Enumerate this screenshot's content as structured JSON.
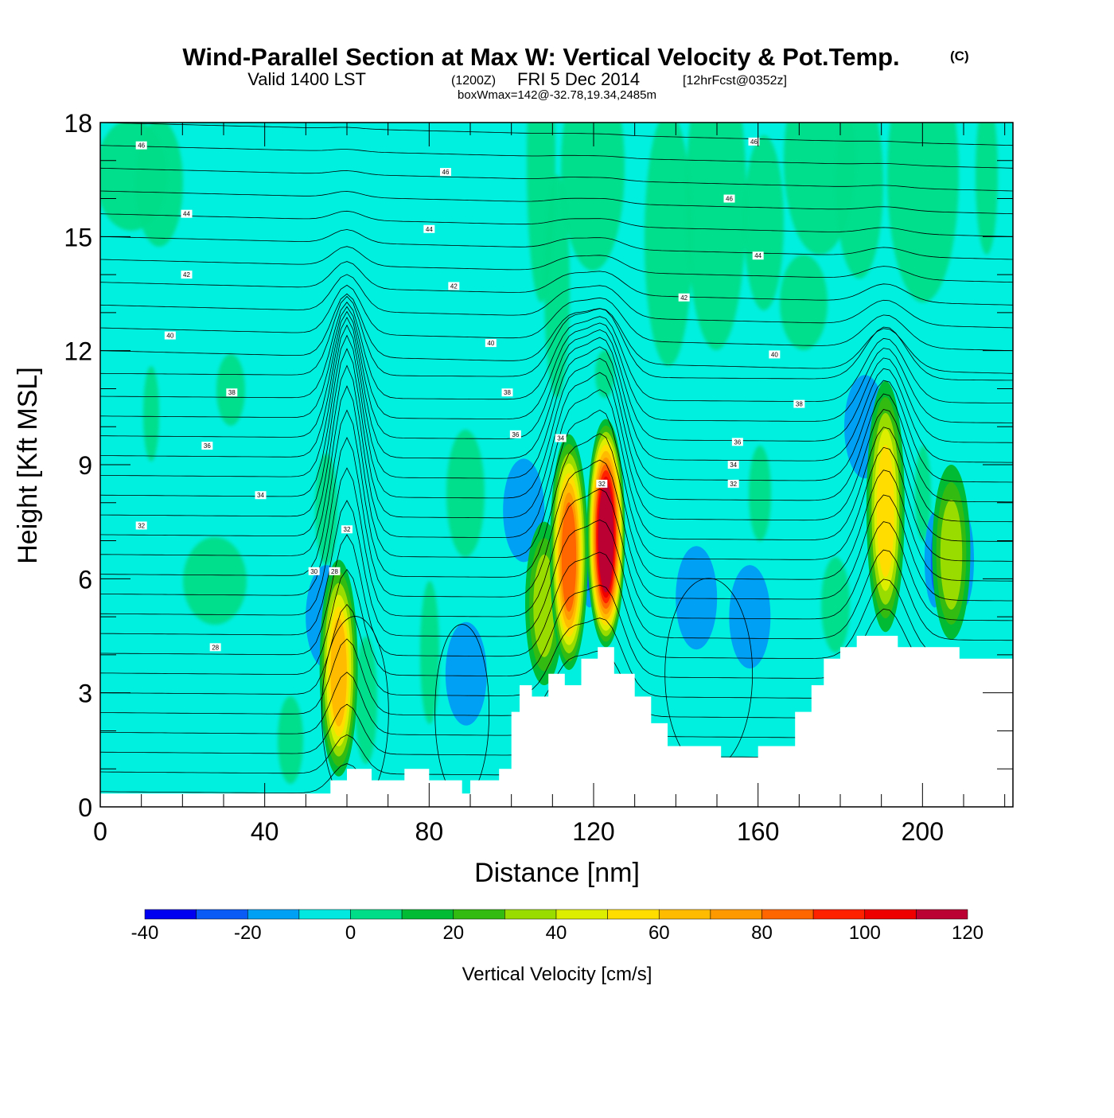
{
  "header": {
    "title": "Wind-Parallel Section at Max W: Vertical Velocity & Pot.Temp.",
    "copyright": "(C)",
    "valid_prefix": "Valid 1400 LST",
    "valid_utc": "(1200Z)",
    "valid_date": "FRI 5 Dec 2014",
    "forecast": "[12hrFcst@0352z]",
    "boxwmax": "boxWmax=142@-32.78,19.34,2485m"
  },
  "chart_data": {
    "type": "heatmap",
    "xlabel": "Distance [nm]",
    "ylabel": "Height [Kft MSL]",
    "xlim": [
      0,
      222
    ],
    "ylim": [
      0,
      18
    ],
    "x_ticks": [
      0,
      40,
      80,
      120,
      160,
      200
    ],
    "y_ticks": [
      0,
      3,
      6,
      9,
      12,
      15,
      18
    ],
    "field": "Vertical Velocity [cm/s]",
    "contour_field": "Potential Temperature",
    "terrain_kft": [
      [
        0,
        0.35
      ],
      [
        56,
        0.35
      ],
      [
        56,
        0.7
      ],
      [
        60,
        0.7
      ],
      [
        60,
        1.0
      ],
      [
        66,
        1.0
      ],
      [
        66,
        0.7
      ],
      [
        74,
        0.7
      ],
      [
        74,
        1.0
      ],
      [
        80,
        1.0
      ],
      [
        80,
        0.7
      ],
      [
        88,
        0.7
      ],
      [
        88,
        0.35
      ],
      [
        90,
        0.35
      ],
      [
        90,
        0.7
      ],
      [
        97,
        0.7
      ],
      [
        97,
        1.0
      ],
      [
        100,
        1.0
      ],
      [
        100,
        2.5
      ],
      [
        102,
        2.5
      ],
      [
        102,
        3.2
      ],
      [
        105,
        3.2
      ],
      [
        105,
        2.9
      ],
      [
        109,
        2.9
      ],
      [
        109,
        3.5
      ],
      [
        113,
        3.5
      ],
      [
        113,
        3.2
      ],
      [
        117,
        3.2
      ],
      [
        117,
        3.9
      ],
      [
        121,
        3.9
      ],
      [
        121,
        4.2
      ],
      [
        125,
        4.2
      ],
      [
        125,
        3.5
      ],
      [
        130,
        3.5
      ],
      [
        130,
        2.9
      ],
      [
        134,
        2.9
      ],
      [
        134,
        2.2
      ],
      [
        138,
        2.2
      ],
      [
        138,
        1.6
      ],
      [
        151,
        1.6
      ],
      [
        151,
        1.3
      ],
      [
        160,
        1.3
      ],
      [
        160,
        1.6
      ],
      [
        169,
        1.6
      ],
      [
        169,
        2.5
      ],
      [
        173,
        2.5
      ],
      [
        173,
        3.2
      ],
      [
        176,
        3.2
      ],
      [
        176,
        3.9
      ],
      [
        180,
        3.9
      ],
      [
        180,
        4.2
      ],
      [
        184,
        4.2
      ],
      [
        184,
        4.5
      ],
      [
        194,
        4.5
      ],
      [
        194,
        4.2
      ],
      [
        209,
        4.2
      ],
      [
        209,
        3.9
      ],
      [
        222,
        3.9
      ]
    ],
    "updrafts": [
      {
        "x": 58,
        "ytop": 6.5,
        "ybot": 0.8,
        "peak_cm_s": 70
      },
      {
        "x": 108,
        "ytop": 7.5,
        "ybot": 3.2,
        "peak_cm_s": 35
      },
      {
        "x": 114,
        "ytop": 9.8,
        "ybot": 3.6,
        "peak_cm_s": 90
      },
      {
        "x": 123,
        "ytop": 10.2,
        "ybot": 4.2,
        "peak_cm_s": 142
      },
      {
        "x": 191,
        "ytop": 11.2,
        "ybot": 4.6,
        "peak_cm_s": 55
      },
      {
        "x": 207,
        "ytop": 9.0,
        "ybot": 4.4,
        "peak_cm_s": 40
      }
    ],
    "downdrafts": [
      {
        "x": 55,
        "y": 5.0,
        "min_cm_s": -15
      },
      {
        "x": 89,
        "y": 3.5,
        "min_cm_s": -15
      },
      {
        "x": 103,
        "y": 7.8,
        "min_cm_s": -15
      },
      {
        "x": 119,
        "y": 6.5,
        "min_cm_s": -25
      },
      {
        "x": 145,
        "y": 5.5,
        "min_cm_s": -15
      },
      {
        "x": 158,
        "y": 5.0,
        "min_cm_s": -15
      },
      {
        "x": 186,
        "y": 10.0,
        "min_cm_s": -20
      },
      {
        "x": 203,
        "y": 6.5,
        "min_cm_s": -30
      },
      {
        "x": 210,
        "y": 6.5,
        "min_cm_s": -30
      }
    ],
    "contour_labels": [
      {
        "x": 10,
        "y": 17.4,
        "text": "46"
      },
      {
        "x": 84,
        "y": 16.7,
        "text": "46"
      },
      {
        "x": 159,
        "y": 17.5,
        "text": "46"
      },
      {
        "x": 153,
        "y": 16.0,
        "text": "46"
      },
      {
        "x": 21,
        "y": 15.6,
        "text": "44"
      },
      {
        "x": 80,
        "y": 15.2,
        "text": "44"
      },
      {
        "x": 160,
        "y": 14.5,
        "text": "44"
      },
      {
        "x": 21,
        "y": 14.0,
        "text": "42"
      },
      {
        "x": 86,
        "y": 13.7,
        "text": "42"
      },
      {
        "x": 142,
        "y": 13.4,
        "text": "42"
      },
      {
        "x": 17,
        "y": 12.4,
        "text": "40"
      },
      {
        "x": 95,
        "y": 12.2,
        "text": "40"
      },
      {
        "x": 164,
        "y": 11.9,
        "text": "40"
      },
      {
        "x": 32,
        "y": 10.9,
        "text": "38"
      },
      {
        "x": 99,
        "y": 10.9,
        "text": "38"
      },
      {
        "x": 170,
        "y": 10.6,
        "text": "38"
      },
      {
        "x": 26,
        "y": 9.5,
        "text": "36"
      },
      {
        "x": 101,
        "y": 9.8,
        "text": "36"
      },
      {
        "x": 155,
        "y": 9.6,
        "text": "36"
      },
      {
        "x": 39,
        "y": 8.2,
        "text": "34"
      },
      {
        "x": 112,
        "y": 9.7,
        "text": "34"
      },
      {
        "x": 154,
        "y": 9.0,
        "text": "34"
      },
      {
        "x": 10,
        "y": 7.4,
        "text": "32"
      },
      {
        "x": 60,
        "y": 7.3,
        "text": "32"
      },
      {
        "x": 154,
        "y": 8.5,
        "text": "32"
      },
      {
        "x": 52,
        "y": 6.2,
        "text": "30"
      },
      {
        "x": 57,
        "y": 6.2,
        "text": "28"
      },
      {
        "x": 28,
        "y": 4.2,
        "text": "28"
      },
      {
        "x": 122,
        "y": 8.5,
        "text": "32"
      }
    ]
  },
  "colorbar": {
    "title": "Vertical Velocity [cm/s]",
    "boundaries": [
      -40,
      -30,
      -20,
      -10,
      0,
      10,
      20,
      30,
      40,
      50,
      60,
      70,
      80,
      90,
      100,
      110,
      120
    ],
    "tick_labels": [
      "-40",
      "-20",
      "0",
      "20",
      "40",
      "60",
      "80",
      "100",
      "120"
    ],
    "colors": [
      "#0000f0",
      "#0a5af5",
      "#00a0f5",
      "#00e8e0",
      "#00dd88",
      "#00bb33",
      "#33bb11",
      "#99dd00",
      "#ddee00",
      "#ffdd00",
      "#ffbb00",
      "#ff9900",
      "#ff6600",
      "#ff2200",
      "#ee0000",
      "#bb0033"
    ]
  }
}
